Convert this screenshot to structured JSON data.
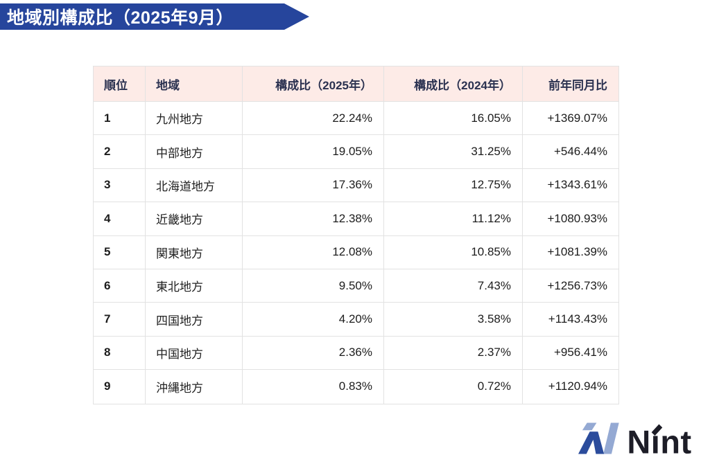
{
  "title": {
    "text": "地域別構成比（2025年9月）"
  },
  "table": {
    "columns": [
      {
        "key": "rank",
        "label": "順位",
        "align": "left"
      },
      {
        "key": "region",
        "label": "地域",
        "align": "left"
      },
      {
        "key": "share2025",
        "label": "構成比（2025年）",
        "align": "right"
      },
      {
        "key": "share2024",
        "label": "構成比（2024年）",
        "align": "right"
      },
      {
        "key": "yoy",
        "label": "前年同月比",
        "align": "right"
      }
    ],
    "rows": [
      [
        "1",
        "九州地方",
        "22.24%",
        "16.05%",
        "+1369.07%"
      ],
      [
        "2",
        "中部地方",
        "19.05%",
        "31.25%",
        "+546.44%"
      ],
      [
        "3",
        "北海道地方",
        "17.36%",
        "12.75%",
        "+1343.61%"
      ],
      [
        "4",
        "近畿地方",
        "12.38%",
        "11.12%",
        "+1080.93%"
      ],
      [
        "5",
        "関東地方",
        "12.08%",
        "10.85%",
        "+1081.39%"
      ],
      [
        "6",
        "東北地方",
        "9.50%",
        "7.43%",
        "+1256.73%"
      ],
      [
        "7",
        "四国地方",
        "4.20%",
        "3.58%",
        "+1143.43%"
      ],
      [
        "8",
        "中国地方",
        "2.36%",
        "2.37%",
        "+956.41%"
      ],
      [
        "9",
        "沖縄地方",
        "0.83%",
        "0.72%",
        "+1120.94%"
      ]
    ]
  },
  "chart_data": {
    "type": "table",
    "title": "地域別構成比（2025年9月）",
    "categories": [
      "九州地方",
      "中部地方",
      "北海道地方",
      "近畿地方",
      "関東地方",
      "東北地方",
      "四国地方",
      "中国地方",
      "沖縄地方"
    ],
    "series": [
      {
        "name": "構成比（2025年）",
        "unit": "%",
        "values": [
          22.24,
          19.05,
          17.36,
          12.38,
          12.08,
          9.5,
          4.2,
          2.36,
          0.83
        ]
      },
      {
        "name": "構成比（2024年）",
        "unit": "%",
        "values": [
          16.05,
          31.25,
          12.75,
          11.12,
          10.85,
          7.43,
          3.58,
          2.37,
          0.72
        ]
      },
      {
        "name": "前年同月比",
        "unit": "%",
        "values": [
          1369.07,
          546.44,
          1343.61,
          1080.93,
          1081.39,
          1256.73,
          1143.43,
          956.41,
          1120.94
        ]
      }
    ],
    "ranks": [
      1,
      2,
      3,
      4,
      5,
      6,
      7,
      8,
      9
    ]
  },
  "logo": {
    "brand": "Nint",
    "display": "Nınt"
  },
  "colors": {
    "banner_blue": "#26459c",
    "header_pink": "#fdebe7",
    "header_text": "#2a3150",
    "cell_text": "#1c1c1c",
    "border": "#e2e2e2",
    "logo_dark": "#2b4c9c",
    "logo_light": "#94a9d3",
    "logo_text": "#1d1d27"
  }
}
